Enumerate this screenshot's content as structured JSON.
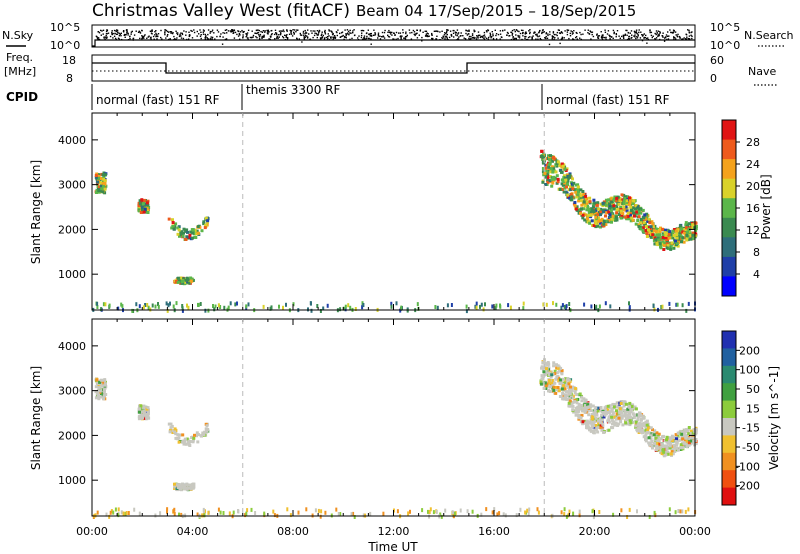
{
  "title_left": "Christmas Valley West (fitACF)",
  "title_right": "Beam 04  17/Sep/2015 – 18/Sep/2015",
  "top_panel": {
    "label": "N.Sky",
    "left_ticks": [
      "10^5",
      "10^0"
    ],
    "right_ticks": [
      "10^5",
      "10^0"
    ],
    "right_label": "N.Search"
  },
  "freq_panel": {
    "label_line1": "Freq.",
    "label_line2": "[MHz]",
    "left_ticks": [
      "18",
      "8"
    ],
    "right_ticks": [
      "60",
      "0"
    ],
    "right_label": "Nave"
  },
  "cpid_panel": {
    "label": "CPID",
    "modes": [
      "normal (fast) 151 RF",
      "themis 3300 RF",
      "normal (fast) 151 RF"
    ]
  },
  "chart_data": [
    {
      "type": "scatter",
      "title": "Power",
      "ylabel": "Slant Range [km]",
      "xlabel": "",
      "ylim": [
        200,
        4600
      ],
      "yticks": [
        1000,
        2000,
        3000,
        4000
      ],
      "xticks": [
        "00:00",
        "04:00",
        "08:00",
        "12:00",
        "16:00",
        "20:00",
        "00:00"
      ],
      "colorbar": {
        "label": "Power [dB]",
        "ticks": [
          "4",
          "8",
          "12",
          "16",
          "20",
          "24",
          "28"
        ],
        "colors": [
          "#0000ff",
          "#1f3fa8",
          "#2e6e7a",
          "#3a8a50",
          "#5bb64a",
          "#d9d22a",
          "#f4a21c",
          "#ee5a1c",
          "#e01414"
        ]
      },
      "echo_regions": [
        {
          "t_start": 0.1,
          "t_end": 0.5,
          "r_start": 2850,
          "r_end": 3300
        },
        {
          "t_start": 1.8,
          "t_end": 2.2,
          "r_start": 2400,
          "r_end": 2700
        },
        {
          "t_start": 3.0,
          "t_end": 4.6,
          "r_start": 1850,
          "r_end": 2350
        },
        {
          "t_start": 3.2,
          "t_end": 4.0,
          "r_start": 820,
          "r_end": 950
        },
        {
          "t_start": 17.8,
          "t_end": 24.0,
          "r_start": 1500,
          "r_end": 3700
        }
      ]
    },
    {
      "type": "scatter",
      "title": "Velocity",
      "ylabel": "Slant Range [km]",
      "xlabel": "Time UT",
      "ylim": [
        200,
        4600
      ],
      "yticks": [
        1000,
        2000,
        3000,
        4000
      ],
      "xticks": [
        "00:00",
        "04:00",
        "08:00",
        "12:00",
        "16:00",
        "20:00",
        "00:00"
      ],
      "colorbar": {
        "label": "Velocity [m s^-1]",
        "ticks": [
          "200",
          "100",
          "50",
          "15",
          "-15",
          "-50",
          "-100",
          "-200"
        ],
        "colors": [
          "#2030b0",
          "#2060a0",
          "#2a8a70",
          "#40a040",
          "#8ccc3c",
          "#c8c8c0",
          "#f0c030",
          "#f09020",
          "#f05010",
          "#e01010"
        ]
      }
    }
  ]
}
